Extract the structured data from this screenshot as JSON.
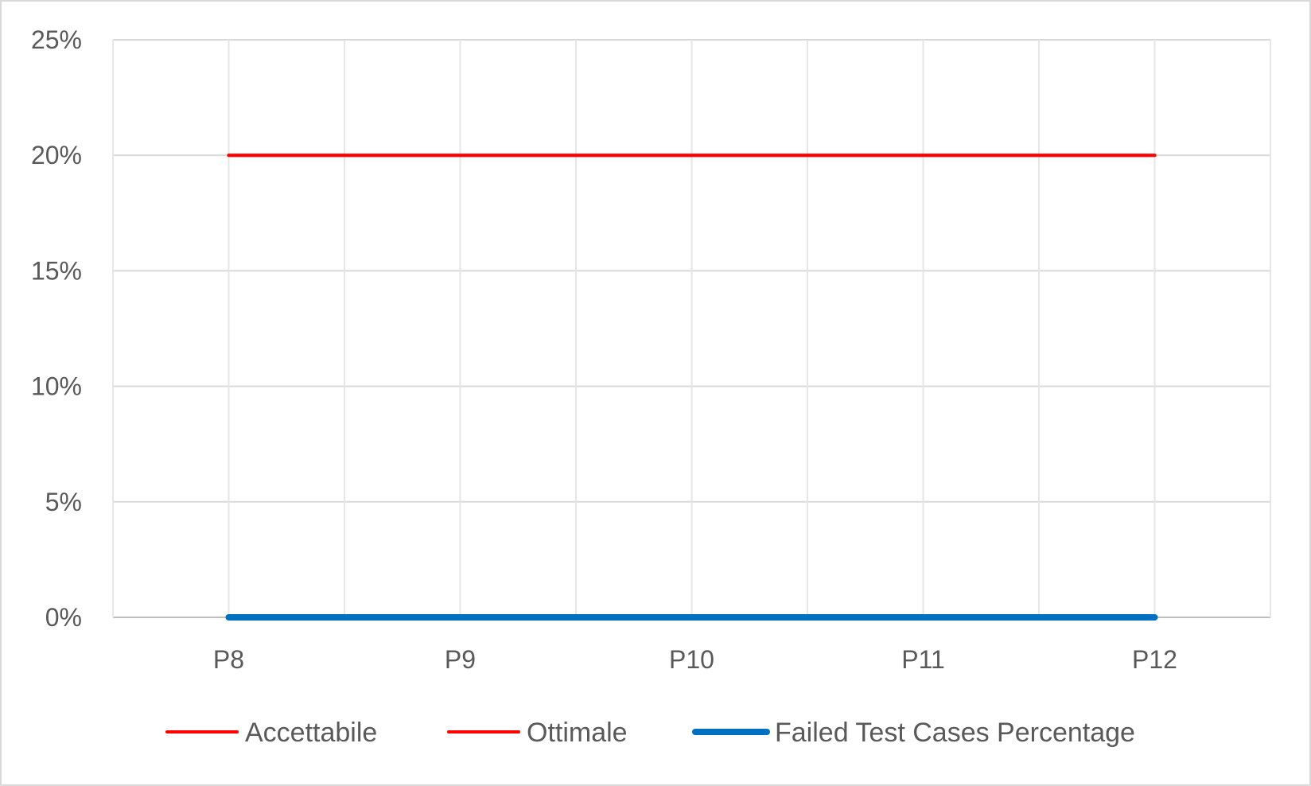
{
  "chart_data": {
    "type": "line",
    "categories": [
      "P8",
      "P9",
      "P10",
      "P11",
      "P12"
    ],
    "series": [
      {
        "name": "Accettabile",
        "values": [
          20,
          20,
          20,
          20,
          20
        ],
        "color": "#ff0000"
      },
      {
        "name": "Ottimale",
        "values": [
          20,
          20,
          20,
          20,
          20
        ],
        "color": "#ff0000"
      },
      {
        "name": "Failed Test Cases Percentage",
        "values": [
          0,
          0,
          0,
          0,
          0
        ],
        "color": "#0070c0"
      }
    ],
    "yticks": [
      "0%",
      "5%",
      "10%",
      "15%",
      "20%",
      "25%"
    ],
    "ylim": [
      0,
      25
    ],
    "grid": true,
    "legend_position": "bottom",
    "title": "",
    "xlabel": "",
    "ylabel": ""
  }
}
